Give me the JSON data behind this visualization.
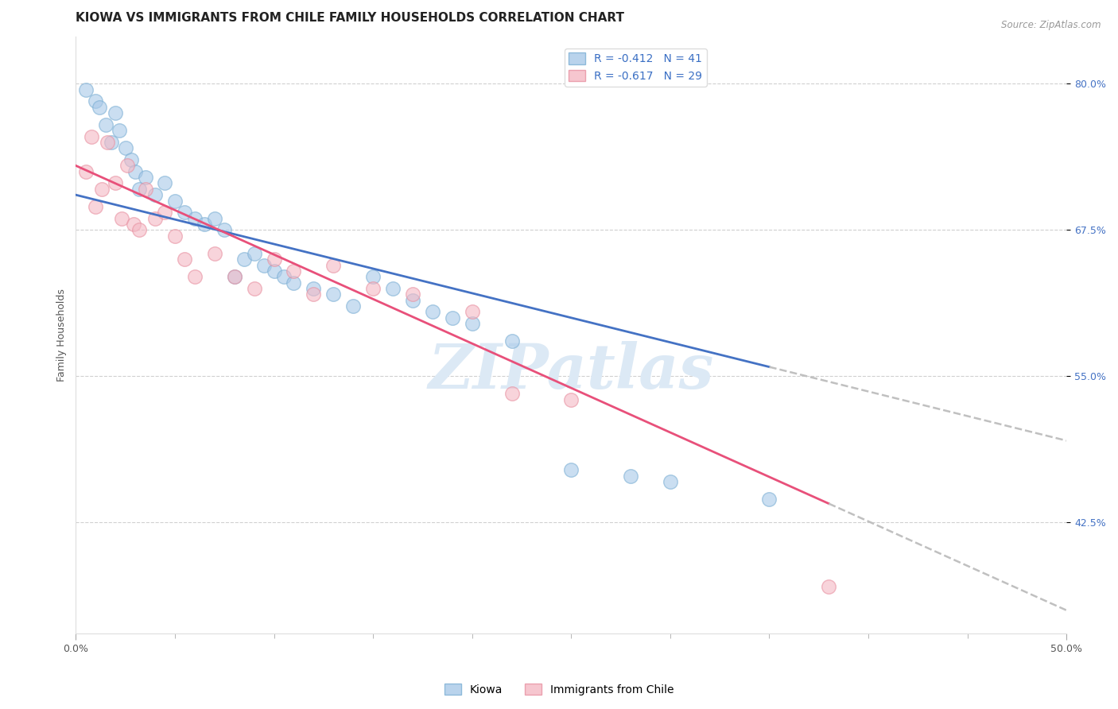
{
  "title": "KIOWA VS IMMIGRANTS FROM CHILE FAMILY HOUSEHOLDS CORRELATION CHART",
  "source": "Source: ZipAtlas.com",
  "ylabel": "Family Households",
  "y_ticks": [
    80.0,
    67.5,
    55.0,
    42.5
  ],
  "y_tick_labels": [
    "80.0%",
    "67.5%",
    "55.0%",
    "42.5%"
  ],
  "xlim": [
    0.0,
    50.0
  ],
  "ylim": [
    33.0,
    84.0
  ],
  "kiowa_color": "#a8c8e8",
  "chile_color": "#f4b8c4",
  "kiowa_R": -0.412,
  "kiowa_N": 41,
  "chile_R": -0.617,
  "chile_N": 29,
  "kiowa_line_color": "#4472c4",
  "chile_line_color": "#e8507a",
  "regression_extend_color": "#c0c0c0",
  "background_color": "#ffffff",
  "grid_color": "#d0d0d0",
  "kiowa_x": [
    0.5,
    1.0,
    1.2,
    1.5,
    1.8,
    2.0,
    2.2,
    2.5,
    2.8,
    3.0,
    3.2,
    3.5,
    4.0,
    4.5,
    5.0,
    5.5,
    6.0,
    6.5,
    7.0,
    7.5,
    8.0,
    8.5,
    9.0,
    9.5,
    10.0,
    10.5,
    11.0,
    12.0,
    13.0,
    14.0,
    15.0,
    16.0,
    17.0,
    18.0,
    19.0,
    20.0,
    22.0,
    25.0,
    28.0,
    30.0,
    35.0
  ],
  "kiowa_y": [
    79.5,
    78.5,
    78.0,
    76.5,
    75.0,
    77.5,
    76.0,
    74.5,
    73.5,
    72.5,
    71.0,
    72.0,
    70.5,
    71.5,
    70.0,
    69.0,
    68.5,
    68.0,
    68.5,
    67.5,
    63.5,
    65.0,
    65.5,
    64.5,
    64.0,
    63.5,
    63.0,
    62.5,
    62.0,
    61.0,
    63.5,
    62.5,
    61.5,
    60.5,
    60.0,
    59.5,
    58.0,
    47.0,
    46.5,
    46.0,
    44.5
  ],
  "chile_x": [
    0.5,
    0.8,
    1.0,
    1.3,
    1.6,
    2.0,
    2.3,
    2.6,
    2.9,
    3.2,
    3.5,
    4.0,
    4.5,
    5.0,
    5.5,
    6.0,
    7.0,
    8.0,
    9.0,
    10.0,
    11.0,
    12.0,
    13.0,
    15.0,
    17.0,
    20.0,
    22.0,
    25.0,
    38.0
  ],
  "chile_y": [
    72.5,
    75.5,
    69.5,
    71.0,
    75.0,
    71.5,
    68.5,
    73.0,
    68.0,
    67.5,
    71.0,
    68.5,
    69.0,
    67.0,
    65.0,
    63.5,
    65.5,
    63.5,
    62.5,
    65.0,
    64.0,
    62.0,
    64.5,
    62.5,
    62.0,
    60.5,
    53.5,
    53.0,
    37.0
  ],
  "watermark": "ZIPatlas",
  "watermark_color": "#dce9f5",
  "legend_kiowa_label": "Kiowa",
  "legend_chile_label": "Immigrants from Chile",
  "title_fontsize": 11,
  "axis_label_fontsize": 9,
  "tick_fontsize": 9,
  "legend_fontsize": 10,
  "kiowa_line_start_x": 0.0,
  "kiowa_line_end_solid_x": 35.0,
  "chile_line_start_x": 0.0,
  "chile_line_end_solid_x": 38.0,
  "line_extend_end_x": 50.0
}
